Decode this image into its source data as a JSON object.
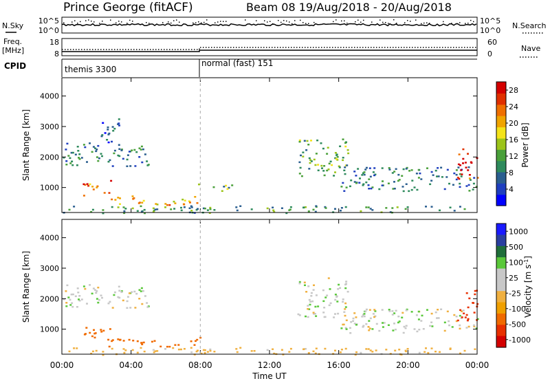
{
  "header": {
    "station": "Prince George (fitACF)",
    "beam_dates": "Beam 08  19/Aug/2018 - 20/Aug/2018"
  },
  "noise_panel": {
    "left_label": "N.Sky",
    "right_label": "N.Search",
    "tick_top": "10^5",
    "tick_bottom": "10^0"
  },
  "freq_panel": {
    "left_label_1": "Freq.",
    "left_label_2": "[MHz]",
    "tick_top": "18",
    "tick_bottom": "8",
    "right_tick_top": "60",
    "right_tick_bottom": "0",
    "right_label": "Nave"
  },
  "cpid_panel": {
    "label": "CPID",
    "modes": [
      {
        "name": "themis 3300",
        "start_hour": 0
      },
      {
        "name": "normal (fast) 151",
        "start_hour": 8
      }
    ]
  },
  "colors": {
    "power_scale": [
      "#0000ff",
      "#1f3fbf",
      "#2a5e8f",
      "#2e8a5c",
      "#4aa03a",
      "#9cc41a",
      "#f4e31a",
      "#f0a400",
      "#ef6f00",
      "#e03000",
      "#d40000"
    ],
    "velocity_scale": [
      "#1a1aff",
      "#2a3fa0",
      "#1f6e3a",
      "#5ac83a",
      "#c8c8c8",
      "#c8c8c8",
      "#f0b040",
      "#f0a000",
      "#f06a00",
      "#e83000",
      "#d40000"
    ],
    "ground_scatter": "#bfbfbf"
  },
  "chart_data": [
    {
      "type": "heatmap",
      "name": "Power",
      "ylabel": "Slant Range [km]",
      "xlabel": "",
      "x_ticks": [
        "00:00",
        "04:00",
        "08:00",
        "12:00",
        "16:00",
        "20:00",
        "00:00"
      ],
      "y_ticks": [
        "1000",
        "2000",
        "3000",
        "4000"
      ],
      "xlim_hours": [
        0,
        24
      ],
      "ylim_km": [
        180,
        4600
      ],
      "colorbar": {
        "label": "Power [dB]",
        "ticks": [
          "4",
          "8",
          "12",
          "16",
          "20",
          "24",
          "28"
        ],
        "range": [
          0,
          30
        ]
      },
      "features": [
        {
          "t0": 0.0,
          "t1": 5.0,
          "r0": 1700,
          "r1": 2500,
          "level": 8
        },
        {
          "t0": 2.2,
          "t1": 3.3,
          "r0": 2500,
          "r1": 3500,
          "level": 6
        },
        {
          "t0": 1.2,
          "t1": 2.8,
          "r0": 750,
          "r1": 1250,
          "level": 24
        },
        {
          "t0": 2.6,
          "t1": 8.0,
          "r0": 450,
          "r1": 750,
          "level": 20
        },
        {
          "t0": 7.8,
          "t1": 9.8,
          "r0": 900,
          "r1": 1150,
          "level": 12
        },
        {
          "t0": 0.0,
          "t1": 24.0,
          "r0": 180,
          "r1": 420,
          "level": 10
        },
        {
          "t0": 13.6,
          "t1": 16.5,
          "r0": 1400,
          "r1": 2700,
          "level": 12
        },
        {
          "t0": 16.0,
          "t1": 24.0,
          "r0": 900,
          "r1": 1700,
          "level": 8
        },
        {
          "t0": 22.8,
          "t1": 24.0,
          "r0": 1300,
          "r1": 2300,
          "level": 26
        }
      ]
    },
    {
      "type": "heatmap",
      "name": "Velocity",
      "ylabel": "Slant Range [km]",
      "xlabel": "Time UT",
      "x_ticks": [
        "00:00",
        "04:00",
        "08:00",
        "12:00",
        "16:00",
        "20:00",
        "00:00"
      ],
      "y_ticks": [
        "1000",
        "2000",
        "3000",
        "4000"
      ],
      "xlim_hours": [
        0,
        24
      ],
      "ylim_km": [
        180,
        4600
      ],
      "colorbar": {
        "label": "Velocity [m s-1]",
        "ticks": [
          "1000",
          "500",
          "100",
          "25",
          "-25",
          "-100",
          "-500",
          "-1000"
        ]
      },
      "features": [
        {
          "t0": 0.0,
          "t1": 5.0,
          "r0": 1700,
          "r1": 2500,
          "velocity": 0
        },
        {
          "t0": 1.2,
          "t1": 2.8,
          "r0": 750,
          "r1": 1250,
          "velocity": -400
        },
        {
          "t0": 2.6,
          "t1": 8.0,
          "r0": 450,
          "r1": 750,
          "velocity": -400
        },
        {
          "t0": 0.0,
          "t1": 24.0,
          "r0": 180,
          "r1": 420,
          "velocity": -60
        },
        {
          "t0": 13.6,
          "t1": 16.5,
          "r0": 1400,
          "r1": 2700,
          "velocity": 0
        },
        {
          "t0": 16.0,
          "t1": 24.0,
          "r0": 900,
          "r1": 1700,
          "velocity": 0
        },
        {
          "t0": 22.8,
          "t1": 24.0,
          "r0": 1300,
          "r1": 2300,
          "velocity": -800
        }
      ]
    }
  ]
}
